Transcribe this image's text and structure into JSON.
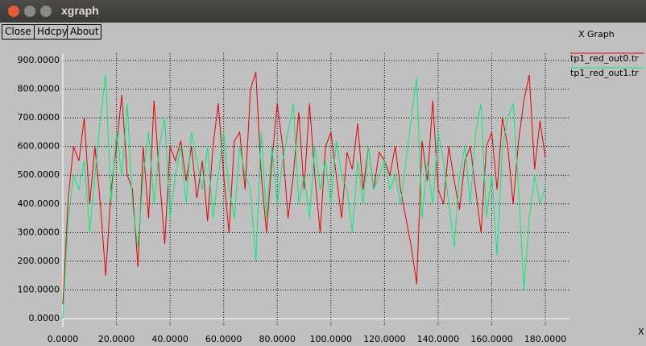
{
  "window": {
    "title": "xgraph",
    "buttons": [
      "Close",
      "Hdcpy",
      "About"
    ]
  },
  "chart_data": {
    "type": "line",
    "title": "X Graph",
    "xlabel": "X",
    "grid": true,
    "xlim": [
      0,
      189
    ],
    "ylim": [
      0,
      900
    ],
    "xticks": [
      {
        "value": 0,
        "label": "0.0000"
      },
      {
        "value": 20,
        "label": "20.0000"
      },
      {
        "value": 40,
        "label": "40.0000"
      },
      {
        "value": 60,
        "label": "60.0000"
      },
      {
        "value": 80,
        "label": "80.0000"
      },
      {
        "value": 100,
        "label": "100.0000"
      },
      {
        "value": 120,
        "label": "120.0000"
      },
      {
        "value": 140,
        "label": "140.0000"
      },
      {
        "value": 160,
        "label": "160.0000"
      },
      {
        "value": 180,
        "label": "180.0000"
      }
    ],
    "yticks": [
      {
        "value": 0,
        "label": "0.0000"
      },
      {
        "value": 100,
        "label": "100.0000"
      },
      {
        "value": 200,
        "label": "200.0000"
      },
      {
        "value": 300,
        "label": "300.0000"
      },
      {
        "value": 400,
        "label": "400.0000"
      },
      {
        "value": 500,
        "label": "500.0000"
      },
      {
        "value": 600,
        "label": "600.0000"
      },
      {
        "value": 700,
        "label": "700.0000"
      },
      {
        "value": 800,
        "label": "800.0000"
      },
      {
        "value": 900,
        "label": "900.0000"
      }
    ],
    "x": [
      0,
      2,
      4,
      6,
      8,
      10,
      12,
      14,
      16,
      18,
      20,
      22,
      24,
      26,
      28,
      30,
      32,
      34,
      36,
      38,
      40,
      42,
      44,
      46,
      48,
      50,
      52,
      54,
      56,
      58,
      60,
      62,
      64,
      66,
      68,
      70,
      72,
      74,
      76,
      78,
      80,
      82,
      84,
      86,
      88,
      90,
      92,
      94,
      96,
      98,
      100,
      102,
      104,
      106,
      108,
      110,
      112,
      114,
      116,
      118,
      120,
      122,
      124,
      126,
      128,
      130,
      132,
      134,
      136,
      138,
      140,
      142,
      144,
      146,
      148,
      150,
      152,
      154,
      156,
      158,
      160,
      162,
      164,
      166,
      168,
      170,
      172,
      174,
      176,
      178,
      180
    ],
    "series": [
      {
        "name": "tp1_red_out0.tr",
        "color": "#e60000",
        "values": [
          50,
          420,
          600,
          550,
          700,
          400,
          600,
          400,
          150,
          450,
          600,
          780,
          500,
          450,
          180,
          600,
          350,
          760,
          500,
          260,
          600,
          550,
          620,
          480,
          600,
          420,
          550,
          340,
          600,
          750,
          500,
          300,
          620,
          650,
          450,
          800,
          860,
          500,
          300,
          550,
          750,
          600,
          350,
          500,
          720,
          450,
          750,
          500,
          300,
          600,
          650,
          500,
          350,
          580,
          520,
          680,
          450,
          600,
          450,
          580,
          550,
          500,
          600,
          450,
          350,
          250,
          120,
          620,
          480,
          760,
          450,
          400,
          600,
          480,
          380,
          550,
          600,
          450,
          300,
          600,
          650,
          450,
          700,
          600,
          400,
          620,
          760,
          850,
          520,
          690,
          560
        ]
      },
      {
        "name": "tp1_red_out1.tr",
        "color": "#00ee77",
        "values": [
          0,
          350,
          500,
          450,
          550,
          300,
          500,
          700,
          850,
          400,
          650,
          500,
          750,
          400,
          250,
          500,
          650,
          400,
          600,
          700,
          350,
          500,
          600,
          400,
          650,
          550,
          450,
          600,
          350,
          500,
          650,
          450,
          350,
          600,
          500,
          450,
          200,
          650,
          350,
          600,
          400,
          550,
          650,
          750,
          400,
          500,
          350,
          600,
          450,
          550,
          400,
          620,
          500,
          450,
          300,
          550,
          400,
          600,
          450,
          500,
          550,
          450,
          500,
          400,
          550,
          700,
          840,
          350,
          550,
          400,
          650,
          550,
          400,
          250,
          500,
          600,
          400,
          650,
          750,
          350,
          500,
          220,
          600,
          700,
          750,
          450,
          100,
          350,
          500,
          400,
          460
        ]
      }
    ]
  }
}
